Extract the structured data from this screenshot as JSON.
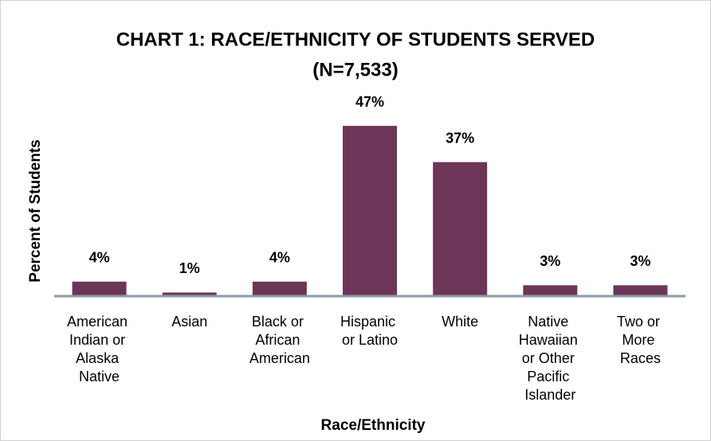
{
  "chart_data": {
    "type": "bar",
    "title": "CHART 1: RACE/ETHNICITY OF STUDENTS SERVED",
    "subtitle": "(N=7,533)",
    "y_label": "Percent of Students",
    "x_label": "Race/Ethnicity",
    "categories": [
      "American Indian or Alaska Native",
      "Asian",
      "Black or African American",
      "Hispanic or Latino",
      "White",
      "Native Hawaiian or Other Pacific Islander",
      "Two or More Races"
    ],
    "values": [
      4,
      1,
      4,
      47,
      37,
      3,
      3
    ],
    "value_labels": [
      "4%",
      "1%",
      "4%",
      "47%",
      "37%",
      "3%",
      "3%"
    ],
    "color": "#6d3558"
  }
}
